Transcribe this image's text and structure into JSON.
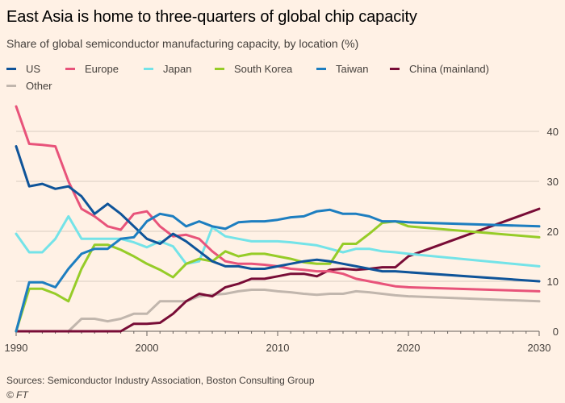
{
  "title": "East Asia is home to three-quarters of global chip capacity",
  "subtitle": "Share of global semiconductor manufacturing capacity, by location (%)",
  "source": "Sources: Semiconductor Industry Association, Boston Consulting Group",
  "credit": "© FT",
  "colors": {
    "background": "#fff1e5",
    "grid": "#d9cdc1",
    "axis": "#66605c"
  },
  "chart_data": {
    "type": "line",
    "title": "East Asia is home to three-quarters of global chip capacity",
    "subtitle": "Share of global semiconductor manufacturing capacity, by location (%)",
    "xlabel": "",
    "ylabel": "",
    "xlim": [
      1990,
      2030
    ],
    "ylim": [
      0,
      45
    ],
    "x_ticks": [
      1990,
      2000,
      2010,
      2020,
      2030
    ],
    "y_ticks": [
      0,
      10,
      20,
      30,
      40
    ],
    "grid": "horizontal",
    "legend_position": "top",
    "series": [
      {
        "name": "US",
        "color": "#0f5499",
        "x": [
          1990,
          1991,
          1992,
          1993,
          1994,
          1995,
          1996,
          1997,
          1998,
          1999,
          2000,
          2001,
          2002,
          2003,
          2004,
          2005,
          2006,
          2007,
          2008,
          2009,
          2010,
          2011,
          2012,
          2013,
          2014,
          2015,
          2016,
          2017,
          2018,
          2019,
          2020,
          2030
        ],
        "y": [
          37,
          29,
          29.5,
          28.5,
          29,
          27,
          23.5,
          25.5,
          23.5,
          21,
          18.5,
          17.5,
          19.5,
          18,
          16,
          14,
          13,
          13,
          12.5,
          12.5,
          13,
          13.5,
          14,
          14.3,
          14,
          13.5,
          13,
          12.5,
          12,
          12,
          11.8,
          10
        ]
      },
      {
        "name": "Europe",
        "color": "#e8537a",
        "x": [
          1990,
          1991,
          1992,
          1993,
          1994,
          1995,
          1996,
          1997,
          1998,
          1999,
          2000,
          2001,
          2002,
          2003,
          2004,
          2005,
          2006,
          2007,
          2008,
          2009,
          2010,
          2011,
          2012,
          2013,
          2014,
          2015,
          2016,
          2017,
          2018,
          2019,
          2020,
          2030
        ],
        "y": [
          45,
          37.5,
          37.3,
          37,
          30,
          24.5,
          23,
          21,
          20.3,
          23.5,
          24,
          21,
          19,
          19.3,
          18.5,
          16,
          14,
          13.5,
          13.5,
          13.3,
          13,
          12.5,
          12.3,
          12,
          12,
          11.5,
          10.5,
          10,
          9.5,
          9,
          8.8,
          8
        ]
      },
      {
        "name": "Japan",
        "color": "#74e3e8",
        "x": [
          1990,
          1991,
          1992,
          1993,
          1994,
          1995,
          1996,
          1997,
          1998,
          1999,
          2000,
          2001,
          2002,
          2003,
          2004,
          2005,
          2006,
          2007,
          2008,
          2009,
          2010,
          2011,
          2012,
          2013,
          2014,
          2015,
          2016,
          2017,
          2018,
          2019,
          2020,
          2030
        ],
        "y": [
          19.5,
          15.8,
          15.8,
          18.5,
          23,
          18.5,
          18.5,
          18.5,
          18.5,
          17.8,
          16.8,
          18,
          17,
          13.5,
          14,
          20.8,
          19,
          18.5,
          18,
          18,
          18,
          17.8,
          17.5,
          17.2,
          16.5,
          15.8,
          16.5,
          16.5,
          16,
          15.8,
          15.5,
          13
        ]
      },
      {
        "name": "South Korea",
        "color": "#96cc28",
        "x": [
          1990,
          1991,
          1992,
          1993,
          1994,
          1995,
          1996,
          1997,
          1998,
          1999,
          2000,
          2001,
          2002,
          2003,
          2004,
          2005,
          2006,
          2007,
          2008,
          2009,
          2010,
          2011,
          2012,
          2013,
          2014,
          2015,
          2016,
          2017,
          2018,
          2019,
          2020,
          2030
        ],
        "y": [
          0,
          8.5,
          8.5,
          7.5,
          6,
          12.5,
          17.3,
          17.3,
          16.3,
          15,
          13.5,
          12.3,
          10.8,
          13.5,
          14.5,
          14,
          16,
          15,
          15.5,
          15.5,
          15,
          14.5,
          13.8,
          13.5,
          13.5,
          17.5,
          17.5,
          19.5,
          21.7,
          22,
          21,
          18.8
        ]
      },
      {
        "name": "Taiwan",
        "color": "#1d7ec0",
        "x": [
          1990,
          1991,
          1992,
          1993,
          1994,
          1995,
          1996,
          1997,
          1998,
          1999,
          2000,
          2001,
          2002,
          2003,
          2004,
          2005,
          2006,
          2007,
          2008,
          2009,
          2010,
          2011,
          2012,
          2013,
          2014,
          2015,
          2016,
          2017,
          2018,
          2019,
          2020,
          2030
        ],
        "y": [
          0,
          9.8,
          9.8,
          8.8,
          12.5,
          15.5,
          16.5,
          16.5,
          18.5,
          18.8,
          22,
          23.5,
          23,
          21,
          22,
          21,
          20.5,
          21.8,
          22,
          22,
          22.3,
          22.8,
          23,
          24,
          24.3,
          23.5,
          23.5,
          23,
          22,
          22,
          21.8,
          21
        ]
      },
      {
        "name": "China (mainland)",
        "color": "#780c36",
        "x": [
          1990,
          1991,
          1992,
          1993,
          1994,
          1995,
          1996,
          1997,
          1998,
          1999,
          2000,
          2001,
          2002,
          2003,
          2004,
          2005,
          2006,
          2007,
          2008,
          2009,
          2010,
          2011,
          2012,
          2013,
          2014,
          2015,
          2016,
          2017,
          2018,
          2019,
          2020,
          2030
        ],
        "y": [
          0,
          0,
          0,
          0,
          0,
          0,
          0,
          0,
          0,
          1.5,
          1.5,
          1.7,
          3.5,
          6,
          7.5,
          7,
          8.8,
          9.5,
          10.5,
          10.5,
          11,
          11.5,
          11.5,
          11,
          12.3,
          12.5,
          12.3,
          12.5,
          12.8,
          12.8,
          15,
          24.5
        ]
      },
      {
        "name": "Other",
        "color": "#c1b6ad",
        "x": [
          1990,
          1991,
          1992,
          1993,
          1994,
          1995,
          1996,
          1997,
          1998,
          1999,
          2000,
          2001,
          2002,
          2003,
          2004,
          2005,
          2006,
          2007,
          2008,
          2009,
          2010,
          2011,
          2012,
          2013,
          2014,
          2015,
          2016,
          2017,
          2018,
          2019,
          2020,
          2030
        ],
        "y": [
          0,
          0,
          0,
          0,
          0,
          2.5,
          2.5,
          2,
          2.5,
          3.5,
          3.5,
          6,
          6,
          6,
          7,
          7.3,
          7.5,
          8,
          8.3,
          8.3,
          8,
          7.8,
          7.5,
          7.3,
          7.5,
          7.5,
          8,
          7.8,
          7.5,
          7.2,
          7,
          6
        ]
      }
    ]
  }
}
